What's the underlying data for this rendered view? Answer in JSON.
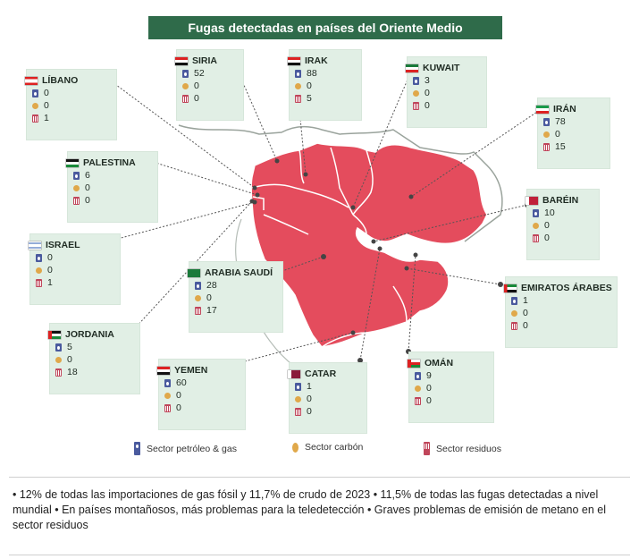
{
  "title": "Fugas detectadas en países del Oriente Medio",
  "colors": {
    "map": "#e44c5d",
    "card": "#e1efe5",
    "title_bg": "#2f6b4a"
  },
  "countries": [
    {
      "id": "libano",
      "name": "LÍBANO",
      "flag": "lebanon-flag",
      "oil": "0",
      "coal": "0",
      "waste": "1"
    },
    {
      "id": "siria",
      "name": "SIRIA",
      "flag": "syria-flag",
      "oil": "52",
      "coal": "0",
      "waste": "0"
    },
    {
      "id": "irak",
      "name": "IRAK",
      "flag": "iraq-flag",
      "oil": "88",
      "coal": "0",
      "waste": "5"
    },
    {
      "id": "kuwait",
      "name": "KUWAIT",
      "flag": "kuwait-flag",
      "oil": "3",
      "coal": "0",
      "waste": "0"
    },
    {
      "id": "iran",
      "name": "IRÁN",
      "flag": "iran-flag",
      "oil": "78",
      "coal": "0",
      "waste": "15"
    },
    {
      "id": "palestina",
      "name": "PALESTINA",
      "flag": "palestine-flag",
      "oil": "6",
      "coal": "0",
      "waste": "0"
    },
    {
      "id": "barein",
      "name": "BARÉIN",
      "flag": "bahrain-flag",
      "oil": "10",
      "coal": "0",
      "waste": "0"
    },
    {
      "id": "israel",
      "name": "ISRAEL",
      "flag": "israel-flag",
      "oil": "0",
      "coal": "0",
      "waste": "1"
    },
    {
      "id": "arabia",
      "name": "ARABIA SAUDÍ",
      "flag": "saudi-flag",
      "oil": "28",
      "coal": "0",
      "waste": "17"
    },
    {
      "id": "emiratos",
      "name": "EMIRATOS ÁRABES",
      "flag": "uae-flag",
      "oil": "1",
      "coal": "0",
      "waste": "0"
    },
    {
      "id": "jordania",
      "name": "JORDANIA",
      "flag": "jordan-flag",
      "oil": "5",
      "coal": "0",
      "waste": "18"
    },
    {
      "id": "yemen",
      "name": "YEMEN",
      "flag": "yemen-flag",
      "oil": "60",
      "coal": "0",
      "waste": "0"
    },
    {
      "id": "catar",
      "name": "CATAR",
      "flag": "qatar-flag",
      "oil": "1",
      "coal": "0",
      "waste": "0"
    },
    {
      "id": "oman",
      "name": "OMÁN",
      "flag": "oman-flag",
      "oil": "9",
      "coal": "0",
      "waste": "0"
    }
  ],
  "legend": [
    {
      "label": "Sector petróleo & gas",
      "icon": "oil-gas-icon"
    },
    {
      "label": "Sector carbón",
      "icon": "coal-icon"
    },
    {
      "label": "Sector residuos",
      "icon": "waste-bin-icon"
    }
  ],
  "notes": "• 12% de todas las importaciones de gas fósil y 11,7% de crudo de 2023 • 11,5% de todas las fugas detectadas a nivel mundial •  En países montañosos, más problemas para la teledetección • Graves problemas de emisión de metano en el sector residuos"
}
